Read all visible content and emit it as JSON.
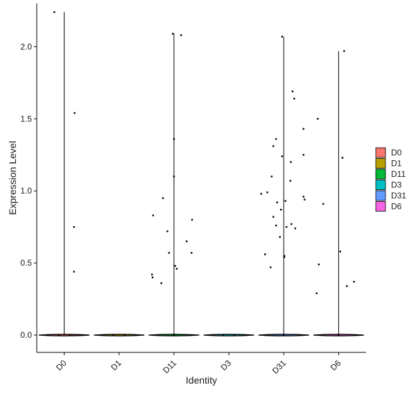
{
  "chart_data": {
    "type": "violin",
    "title": "",
    "xlabel": "Identity",
    "ylabel": "Expression Level",
    "categories": [
      "D0",
      "D1",
      "D11",
      "D3",
      "D31",
      "D6"
    ],
    "ylim": [
      -0.12,
      2.3
    ],
    "yticks": [
      0.0,
      0.5,
      1.0,
      1.5,
      2.0
    ],
    "ytick_labels": [
      "0.0",
      "0.5",
      "1.0",
      "1.5",
      "2.0"
    ],
    "grid": false,
    "legend": {
      "position": "right",
      "entries": [
        {
          "label": "D0",
          "color": "#F8766D"
        },
        {
          "label": "D1",
          "color": "#B79F00"
        },
        {
          "label": "D11",
          "color": "#00BA38"
        },
        {
          "label": "D3",
          "color": "#00BFC4"
        },
        {
          "label": "D31",
          "color": "#619CFF"
        },
        {
          "label": "D6",
          "color": "#F564E3"
        }
      ]
    },
    "series": [
      {
        "category": "D0",
        "max": 2.24,
        "points": [
          [
            -0.18,
            2.24
          ],
          [
            0.19,
            1.54
          ],
          [
            0.18,
            0.75
          ],
          [
            0.18,
            0.44
          ],
          [
            -0.3,
            0.0
          ],
          [
            -0.1,
            0.0
          ],
          [
            0.1,
            0.0
          ],
          [
            0.3,
            0.0
          ]
        ]
      },
      {
        "category": "D1",
        "max": 0.0,
        "points": [
          [
            -0.3,
            0.0
          ],
          [
            -0.1,
            0.0
          ],
          [
            0.1,
            0.0
          ],
          [
            0.3,
            0.0
          ]
        ]
      },
      {
        "category": "D11",
        "max": 2.09,
        "points": [
          [
            -0.02,
            2.09
          ],
          [
            0.13,
            2.08
          ],
          [
            0.0,
            1.36
          ],
          [
            0.0,
            1.1
          ],
          [
            -0.2,
            0.95
          ],
          [
            -0.38,
            0.83
          ],
          [
            0.33,
            0.8
          ],
          [
            -0.12,
            0.72
          ],
          [
            0.23,
            0.65
          ],
          [
            -0.09,
            0.57
          ],
          [
            0.32,
            0.57
          ],
          [
            0.02,
            0.48
          ],
          [
            0.05,
            0.46
          ],
          [
            -0.4,
            0.42
          ],
          [
            -0.39,
            0.4
          ],
          [
            -0.23,
            0.36
          ],
          [
            -0.3,
            0.0
          ],
          [
            0.0,
            0.0
          ],
          [
            0.3,
            0.0
          ]
        ]
      },
      {
        "category": "D3",
        "max": 0.0,
        "points": [
          [
            -0.3,
            0.0
          ],
          [
            -0.1,
            0.0
          ],
          [
            0.1,
            0.0
          ],
          [
            0.3,
            0.0
          ]
        ]
      },
      {
        "category": "D31",
        "max": 2.07,
        "points": [
          [
            -0.03,
            2.07
          ],
          [
            0.16,
            1.69
          ],
          [
            0.19,
            1.64
          ],
          [
            0.36,
            1.43
          ],
          [
            -0.14,
            1.36
          ],
          [
            -0.19,
            1.31
          ],
          [
            -0.03,
            1.24
          ],
          [
            0.36,
            1.25
          ],
          [
            0.13,
            1.2
          ],
          [
            -0.22,
            1.1
          ],
          [
            0.12,
            1.07
          ],
          [
            -0.3,
            0.99
          ],
          [
            -0.41,
            0.98
          ],
          [
            0.36,
            0.96
          ],
          [
            0.38,
            0.94
          ],
          [
            0.03,
            0.93
          ],
          [
            -0.12,
            0.92
          ],
          [
            -0.05,
            0.87
          ],
          [
            -0.19,
            0.82
          ],
          [
            0.14,
            0.77
          ],
          [
            0.05,
            0.75
          ],
          [
            0.21,
            0.74
          ],
          [
            -0.14,
            0.76
          ],
          [
            -0.07,
            0.68
          ],
          [
            -0.34,
            0.56
          ],
          [
            0.01,
            0.55
          ],
          [
            0.01,
            0.54
          ],
          [
            -0.24,
            0.47
          ],
          [
            -0.3,
            0.0
          ],
          [
            0.0,
            0.0
          ],
          [
            0.3,
            0.0
          ]
        ]
      },
      {
        "category": "D6",
        "max": 1.97,
        "points": [
          [
            0.1,
            1.97
          ],
          [
            -0.38,
            1.5
          ],
          [
            0.07,
            1.23
          ],
          [
            -0.28,
            0.91
          ],
          [
            -0.36,
            0.49
          ],
          [
            0.03,
            0.58
          ],
          [
            0.15,
            0.34
          ],
          [
            0.28,
            0.37
          ],
          [
            -0.4,
            0.29
          ],
          [
            -0.3,
            0.0
          ],
          [
            0.0,
            0.0
          ],
          [
            0.3,
            0.0
          ]
        ]
      }
    ]
  }
}
